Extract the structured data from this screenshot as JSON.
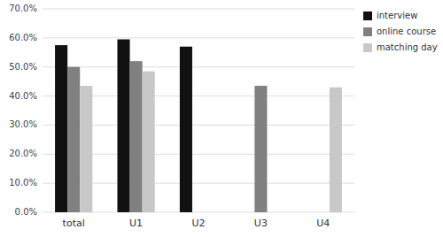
{
  "chart_data": {
    "type": "bar",
    "categories": [
      "total",
      "U1",
      "U2",
      "U3",
      "U4"
    ],
    "series": [
      {
        "name": "interview",
        "color": "#111111",
        "values": [
          57.5,
          59.5,
          57.0,
          null,
          null
        ]
      },
      {
        "name": "online course",
        "color": "#808080",
        "values": [
          50.0,
          52.0,
          null,
          43.5,
          null
        ]
      },
      {
        "name": "matching day",
        "color": "#c8c8c8",
        "values": [
          43.5,
          48.5,
          null,
          null,
          43.0
        ]
      }
    ],
    "ylim": [
      0,
      70
    ],
    "yticks": [
      {
        "value": 0,
        "label": "0.0%"
      },
      {
        "value": 10,
        "label": "10.0%"
      },
      {
        "value": 20,
        "label": "20.0%"
      },
      {
        "value": 30,
        "label": "30.0%"
      },
      {
        "value": 40,
        "label": "40.0%"
      },
      {
        "value": 50,
        "label": "50.0%"
      },
      {
        "value": 60,
        "label": "60.0%"
      },
      {
        "value": 70,
        "label": "70.0%"
      }
    ],
    "grid": true,
    "legend": "upper right"
  }
}
